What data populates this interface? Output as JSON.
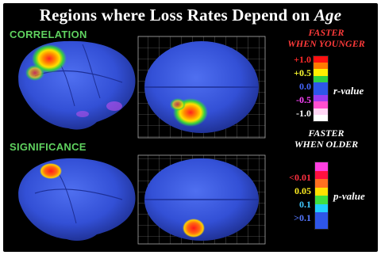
{
  "title": {
    "prefix": "Regions where Loss Rates Depend on ",
    "emphasis": "Age"
  },
  "correlation": {
    "label": "CORRELATION",
    "legend_top": [
      "FASTER",
      "WHEN YOUNGER"
    ],
    "legend_bottom": [
      "FASTER",
      "WHEN OLDER"
    ],
    "scale_label": "r-value",
    "ticks": [
      {
        "text": "+1.0",
        "color": "#ff2a2a"
      },
      {
        "text": "+0.5",
        "color": "#ffff30"
      },
      {
        "text": "0.0",
        "color": "#4466ff"
      },
      {
        "text": "-0.5",
        "color": "#ff44ff"
      },
      {
        "text": "-1.0",
        "color": "#ffffff"
      }
    ],
    "bar_colors": [
      "#ff1010",
      "#ff7a00",
      "#ffee00",
      "#30d040",
      "#2e56e8",
      "#2e56e8",
      "#9b3cf0",
      "#ff50d0",
      "#ffd6f4",
      "#ffffff"
    ]
  },
  "significance": {
    "label": "SIGNIFICANCE",
    "scale_label": "p-value",
    "ticks": [
      {
        "text": "<0.01",
        "color": "#ff3040"
      },
      {
        "text": "0.05",
        "color": "#ffee20"
      },
      {
        "text": "0.1",
        "color": "#40c8ff"
      },
      {
        "text": ">0.1",
        "color": "#5577ff"
      }
    ],
    "bar_colors": [
      "#ff40e0",
      "#ff1040",
      "#ff7020",
      "#ffe000",
      "#40e040",
      "#20d0ff",
      "#2e56e8",
      "#2e56e8"
    ]
  },
  "colors": {
    "background": "#000000",
    "brain": "#3554d8",
    "section_label": "#5fd25f"
  }
}
